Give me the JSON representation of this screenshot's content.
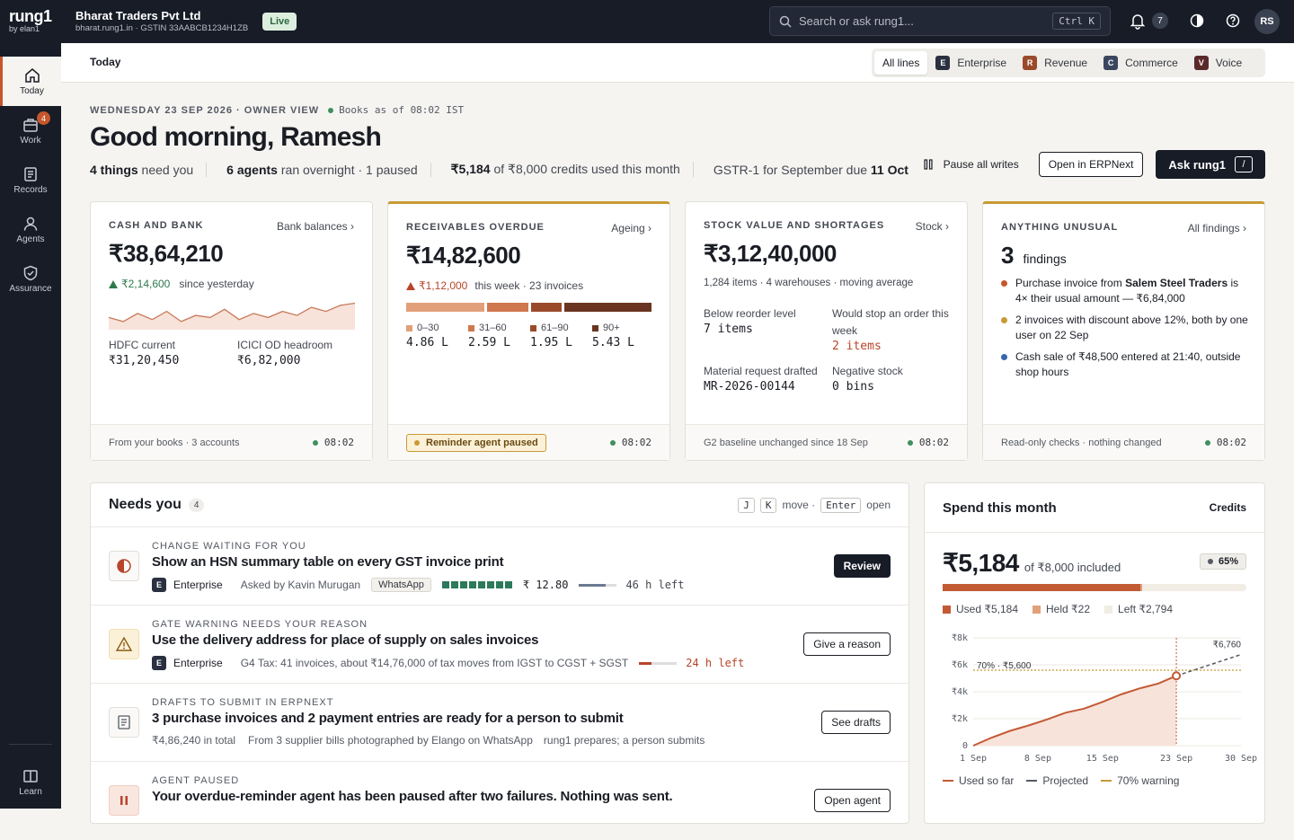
{
  "brand": {
    "name": "rung1",
    "sub": "by elan1"
  },
  "company": {
    "name": "Bharat Traders Pvt Ltd",
    "meta": "bharat.rung1.in · GSTIN 33AABCB1234H1ZB",
    "status": "Live"
  },
  "search": {
    "placeholder": "Search or ask rung1...",
    "shortcut": "Ctrl K"
  },
  "notifications": {
    "count": "7"
  },
  "user": {
    "initials": "RS"
  },
  "sidebar": {
    "items": [
      {
        "label": "Today",
        "icon": "home-icon"
      },
      {
        "label": "Work",
        "icon": "briefcase-icon",
        "badge": "4"
      },
      {
        "label": "Records",
        "icon": "document-icon"
      },
      {
        "label": "Agents",
        "icon": "person-icon"
      },
      {
        "label": "Assurance",
        "icon": "shield-check-icon"
      }
    ],
    "learn": "Learn"
  },
  "subheader": {
    "title": "Today",
    "tabs": [
      {
        "label": "All lines"
      },
      {
        "badge": "E",
        "label": "Enterprise",
        "color": "#2a3040"
      },
      {
        "badge": "R",
        "label": "Revenue",
        "color": "#9a4a2a"
      },
      {
        "badge": "C",
        "label": "Commerce",
        "color": "#3a4660"
      },
      {
        "badge": "V",
        "label": "Voice",
        "color": "#5a2a2a"
      }
    ]
  },
  "hero": {
    "date": "WEDNESDAY 23 SEP 2026 · OWNER VIEW",
    "books": "Books as of 08:02 IST",
    "greeting": "Good morning, Ramesh",
    "s1b": "4 things",
    "s1": " need you",
    "s2b": "6 agents",
    "s2": " ran overnight · 1 paused",
    "s3b": "₹5,184",
    "s3": " of ₹8,000 credits used this month",
    "s4": "GSTR-1 for September due ",
    "s4b": "11 Oct"
  },
  "actions": {
    "pause": "Pause all writes",
    "erp": "Open in ERPNext",
    "ask": "Ask rung1",
    "ask_key": "/"
  },
  "cash": {
    "title": "CASH AND BANK",
    "link": "Bank balances ›",
    "amount": "₹38,64,210",
    "delta": "₹2,14,600",
    "delta_label": "since yesterday",
    "sparkline": [
      22,
      20,
      24,
      21,
      25,
      20,
      23,
      22,
      26,
      21,
      24,
      22,
      25,
      23,
      27,
      25,
      28,
      29
    ],
    "a1_label": "HDFC current",
    "a1": "₹31,20,450",
    "a2_label": "ICICI OD headroom",
    "a2": "₹6,82,000",
    "footer": "From your books · 3 accounts",
    "time": "08:02"
  },
  "recv": {
    "title": "RECEIVABLES OVERDUE",
    "link": "Ageing ›",
    "amount": "₹14,82,600",
    "delta": "₹1,12,000",
    "delta_label": "this week · 23 invoices",
    "buckets": [
      {
        "label": "0–30",
        "value": "4.86 L",
        "amount": 4.86,
        "color": "#e2a07a"
      },
      {
        "label": "31–60",
        "value": "2.59 L",
        "amount": 2.59,
        "color": "#cf774f"
      },
      {
        "label": "61–90",
        "value": "1.95 L",
        "amount": 1.95,
        "color": "#9a4a2a"
      },
      {
        "label": "90+",
        "value": "5.43 L",
        "amount": 5.43,
        "color": "#6a3420"
      }
    ],
    "footer": "Reminder agent paused",
    "time": "08:02"
  },
  "stock": {
    "title": "STOCK VALUE AND SHORTAGES",
    "link": "Stock ›",
    "amount": "₹3,12,40,000",
    "meta": "1,284 items · 4 warehouses · moving average",
    "m1_label": "Below reorder level",
    "m1": "7 items",
    "m2_label": "Would stop an order this week",
    "m2": "2 items",
    "m3_label": "Material request drafted",
    "m3": "MR-2026-00144",
    "m4_label": "Negative stock",
    "m4": "0 bins",
    "footer": "G2 baseline unchanged since 18 Sep",
    "time": "08:02"
  },
  "unusual": {
    "title": "ANYTHING UNUSUAL",
    "link": "All findings ›",
    "count": "3",
    "count_label": "findings",
    "f1a": "Purchase invoice from ",
    "f1b": "Salem Steel Traders",
    "f1c": " is 4× their usual amount — ₹6,84,000",
    "f2": "2 invoices with discount above 12%, both by one user on 22 Sep",
    "f3": "Cash sale of ₹48,500 entered at 21:40, outside shop hours",
    "footer": "Read-only checks · nothing changed",
    "time": "08:02",
    "colors": [
      "#c7562c",
      "#c89a35",
      "#3a66b0"
    ]
  },
  "needs": {
    "title": "Needs you",
    "count": "4",
    "k1": "J",
    "k2": "K",
    "move": "move ·",
    "enter": "Enter",
    "open": "open",
    "rows": [
      {
        "kicker": "CHANGE WAITING FOR YOU",
        "title": "Show an HSN summary table on every GST invoice print",
        "line": "Enterprise",
        "asked": "Asked by Kavin Murugan",
        "chip": "WhatsApp",
        "cost": "₹ 12.80",
        "left": "46 h left",
        "button": "Review"
      },
      {
        "kicker": "GATE WARNING NEEDS YOUR REASON",
        "title": "Use the delivery address for place of supply on sales invoices",
        "line": "Enterprise",
        "note": "G4 Tax: 41 invoices, about ₹14,76,000 of tax moves from IGST to CGST + SGST",
        "left": "24 h left",
        "button": "Give a reason"
      },
      {
        "kicker": "DRAFTS TO SUBMIT IN ERPNEXT",
        "title": "3 purchase invoices and 2 payment entries are ready for a person to submit",
        "total": "₹4,86,240 in total",
        "from": "From 3 supplier bills photographed by Elango on WhatsApp",
        "prep": "rung1 prepares; a person submits",
        "button": "See drafts"
      },
      {
        "kicker": "AGENT PAUSED",
        "title": "Your overdue-reminder agent has been paused after two failures. Nothing was sent.",
        "button": "Open agent"
      }
    ]
  },
  "spend": {
    "title": "Spend this month",
    "link": "Credits",
    "amount": "₹5,184",
    "of": "of ₹8,000 included",
    "pct": "65%",
    "used_frac": 0.65,
    "held_frac": 0.003,
    "legend": {
      "used": "Used ₹5,184",
      "held": "Held ₹22",
      "left": "Left ₹2,794"
    },
    "chart_data": {
      "type": "line",
      "x_ticks": [
        "1 Sep",
        "8 Sep",
        "15 Sep",
        "23 Sep",
        "30 Sep"
      ],
      "y_ticks": [
        "0",
        "₹2k",
        "₹4k",
        "₹6k",
        "₹8k"
      ],
      "ylim": [
        0,
        8000
      ],
      "xlim": [
        1,
        30
      ],
      "series": [
        {
          "name": "Used so far",
          "x": [
            1,
            3,
            5,
            7,
            9,
            11,
            13,
            15,
            17,
            19,
            21,
            23
          ],
          "y": [
            0,
            600,
            1100,
            1500,
            1950,
            2450,
            2750,
            3250,
            3800,
            4250,
            4600,
            5184
          ]
        },
        {
          "name": "Projected",
          "x": [
            23,
            30
          ],
          "y": [
            5184,
            6760
          ]
        }
      ],
      "warning": {
        "value": 5600,
        "label": "70% · ₹5,600"
      },
      "end_label": "₹6,760"
    },
    "chart_legend": {
      "used": "Used so far",
      "proj": "Projected",
      "warn": "70% warning"
    }
  }
}
